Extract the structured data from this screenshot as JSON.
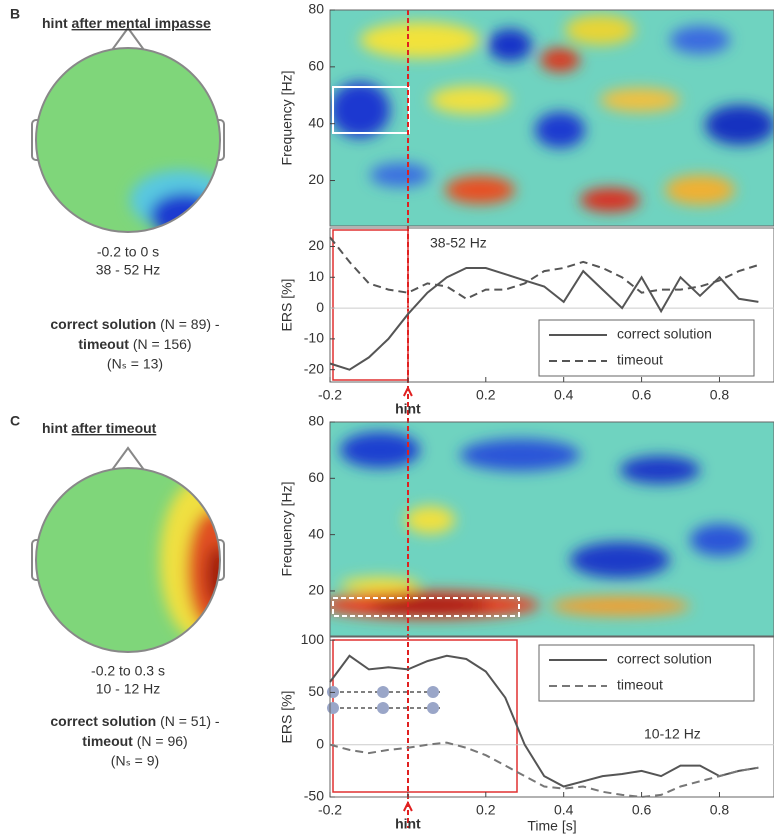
{
  "panels": [
    {
      "label": "B",
      "title_prefix": "hint",
      "title_emphasis": "after mental impasse",
      "topo_time": "-0.2 to 0 s",
      "topo_freq": "38 - 52 Hz",
      "contrast_a": "correct solution",
      "contrast_a_n": "(N =  89) -",
      "contrast_b": "timeout",
      "contrast_b_n": "(N = 156)",
      "subjects": "(Nₛ = 13)"
    },
    {
      "label": "C",
      "title_prefix": "hint",
      "title_emphasis": "after timeout",
      "topo_time": "-0.2 to 0.3 s",
      "topo_freq": "10 - 12 Hz",
      "contrast_a": "correct solution",
      "contrast_a_n": "(N =  51) -",
      "contrast_b": "timeout",
      "contrast_b_n": "(N = 96)",
      "subjects": "(Nₛ = 9)"
    }
  ],
  "chart_data": [
    {
      "type": "heatmap",
      "ylabel": "Frequency [Hz]",
      "ylim": [
        4,
        80
      ],
      "yticks": [
        20,
        40,
        60,
        80
      ]
    },
    {
      "type": "line",
      "ylabel": "ERS [%]",
      "annotation": "38-52 Hz",
      "xlim": [
        -0.2,
        0.94
      ],
      "xticks": [
        -0.2,
        {
          "value": 0,
          "label": "hint"
        },
        0.2,
        0.4,
        0.6,
        0.8
      ],
      "ylim": [
        -24,
        26
      ],
      "yticks": [
        -20,
        -10,
        0,
        10,
        20
      ],
      "legend": "lower right",
      "x": [
        -0.2,
        -0.15,
        -0.1,
        -0.05,
        0,
        0.05,
        0.1,
        0.15,
        0.2,
        0.25,
        0.3,
        0.35,
        0.4,
        0.45,
        0.5,
        0.55,
        0.6,
        0.65,
        0.7,
        0.75,
        0.8,
        0.85,
        0.9
      ],
      "series": [
        {
          "name": "correct solution",
          "color": "#555555",
          "dash": "solid",
          "values": [
            -18,
            -20,
            -16,
            -10,
            -2,
            5,
            10,
            13,
            13,
            11,
            9,
            7,
            2,
            12,
            6,
            0,
            10,
            -1,
            10,
            4,
            10,
            3,
            2
          ]
        },
        {
          "name": "timeout",
          "color": "#555555",
          "dash": "dashed",
          "values": [
            23,
            15,
            8,
            6,
            5,
            8,
            7,
            3,
            6,
            6,
            8,
            12,
            13,
            15,
            13,
            10,
            5,
            6,
            6,
            7,
            9,
            12,
            14
          ]
        }
      ]
    },
    {
      "type": "heatmap",
      "ylabel": "Frequency [Hz]",
      "ylim": [
        4,
        80
      ],
      "yticks": [
        20,
        40,
        60,
        80
      ]
    },
    {
      "type": "line",
      "ylabel": "ERS [%]",
      "xlabel": "Time [s]",
      "annotation": "10-12 Hz",
      "xlim": [
        -0.2,
        0.94
      ],
      "xticks": [
        -0.2,
        {
          "value": 0,
          "label": "hint"
        },
        0.2,
        0.4,
        0.6,
        0.8
      ],
      "ylim": [
        -50,
        103
      ],
      "yticks": [
        -50,
        0,
        50,
        100
      ],
      "legend": "upper right",
      "x": [
        -0.2,
        -0.15,
        -0.1,
        -0.05,
        0,
        0.05,
        0.1,
        0.15,
        0.2,
        0.25,
        0.3,
        0.35,
        0.4,
        0.45,
        0.5,
        0.55,
        0.6,
        0.65,
        0.7,
        0.75,
        0.8,
        0.85,
        0.9
      ],
      "series": [
        {
          "name": "correct solution",
          "color": "#555555",
          "dash": "solid",
          "values": [
            60,
            85,
            72,
            74,
            72,
            80,
            85,
            82,
            70,
            45,
            0,
            -30,
            -40,
            -35,
            -30,
            -28,
            -25,
            -30,
            -20,
            -20,
            -30,
            -25,
            -22
          ]
        },
        {
          "name": "timeout",
          "color": "#777777",
          "dash": "dashed",
          "values": [
            0,
            -5,
            -8,
            -5,
            -3,
            0,
            2,
            -3,
            -10,
            -20,
            -30,
            -40,
            -42,
            -40,
            -45,
            -48,
            -50,
            -48,
            -40,
            -35,
            -30,
            -25,
            -22
          ]
        }
      ]
    }
  ]
}
